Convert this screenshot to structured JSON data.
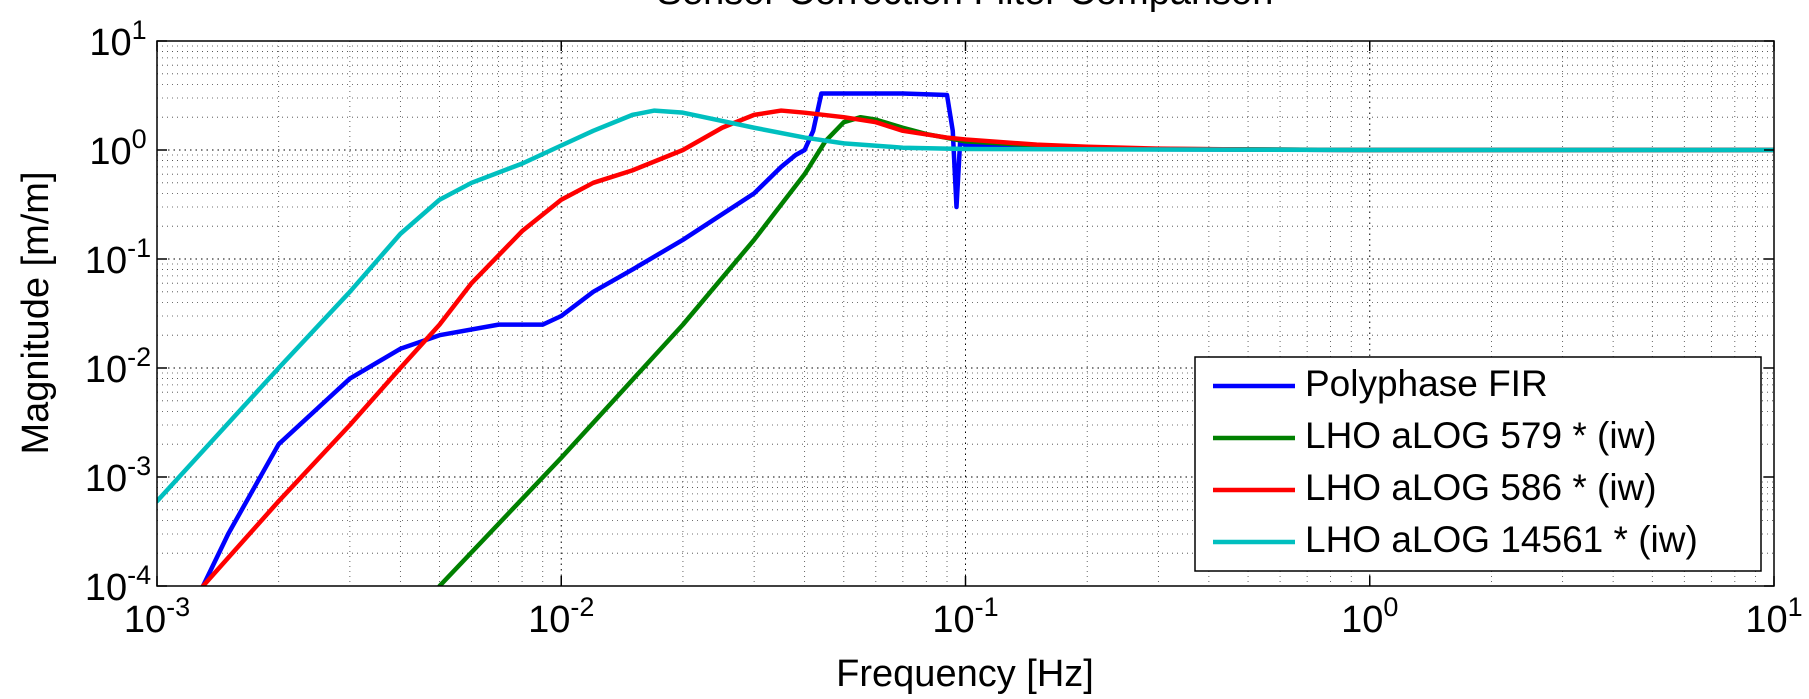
{
  "chart_data": {
    "type": "line",
    "title": "Sensor Correction Filter Comparison",
    "x_label": "Frequency [Hz]",
    "y_label": "Magnitude [m/m]",
    "xscale": "log",
    "yscale": "log",
    "xlim": [
      0.001,
      10
    ],
    "ylim": [
      0.0001,
      10
    ],
    "xticks": [
      {
        "value": 0.001,
        "label": "10^-3"
      },
      {
        "value": 0.01,
        "label": "10^-2"
      },
      {
        "value": 0.1,
        "label": "10^-1"
      },
      {
        "value": 1,
        "label": "10^0"
      },
      {
        "value": 10,
        "label": "10^1"
      }
    ],
    "yticks": [
      {
        "value": 0.0001,
        "label": "10^-4"
      },
      {
        "value": 0.001,
        "label": "10^-3"
      },
      {
        "value": 0.01,
        "label": "10^-2"
      },
      {
        "value": 0.1,
        "label": "10^-1"
      },
      {
        "value": 1,
        "label": "10^0"
      },
      {
        "value": 10,
        "label": "10^1"
      }
    ],
    "grid": true,
    "minor_grid": true,
    "legend": "lower right",
    "series": [
      {
        "name": "Polyphase FIR",
        "color": "#0000ff",
        "x": [
          0.0013,
          0.0015,
          0.002,
          0.003,
          0.004,
          0.005,
          0.007,
          0.009,
          0.01,
          0.012,
          0.015,
          0.02,
          0.03,
          0.035,
          0.038,
          0.04,
          0.042,
          0.044,
          0.05,
          0.07,
          0.09,
          0.093,
          0.095,
          0.097,
          0.1,
          0.15,
          0.2,
          1,
          10
        ],
        "values": [
          0.0001,
          0.0003,
          0.002,
          0.008,
          0.015,
          0.02,
          0.025,
          0.025,
          0.03,
          0.05,
          0.08,
          0.15,
          0.4,
          0.7,
          0.9,
          1.0,
          1.5,
          3.3,
          3.3,
          3.3,
          3.2,
          1.5,
          0.3,
          1.2,
          1.1,
          1.05,
          1.02,
          1,
          1
        ]
      },
      {
        "name": "LHO aLOG 579 * (iw)",
        "color": "#008000",
        "x": [
          0.005,
          0.01,
          0.02,
          0.03,
          0.04,
          0.045,
          0.05,
          0.055,
          0.06,
          0.07,
          0.08,
          0.1,
          0.15,
          0.2,
          0.3,
          1,
          10
        ],
        "values": [
          0.0001,
          0.0015,
          0.025,
          0.15,
          0.6,
          1.2,
          1.8,
          2.0,
          1.9,
          1.6,
          1.4,
          1.2,
          1.1,
          1.05,
          1.02,
          1,
          1
        ]
      },
      {
        "name": "LHO aLOG 586 * (iw)",
        "color": "#ff0000",
        "x": [
          0.0013,
          0.002,
          0.003,
          0.004,
          0.005,
          0.006,
          0.008,
          0.01,
          0.012,
          0.015,
          0.02,
          0.025,
          0.03,
          0.035,
          0.04,
          0.05,
          0.06,
          0.07,
          0.09,
          0.1,
          0.15,
          0.2,
          0.3,
          0.5,
          1,
          10
        ],
        "values": [
          0.0001,
          0.0006,
          0.003,
          0.01,
          0.025,
          0.06,
          0.18,
          0.35,
          0.5,
          0.65,
          1.0,
          1.6,
          2.1,
          2.3,
          2.2,
          2.0,
          1.8,
          1.5,
          1.3,
          1.25,
          1.12,
          1.07,
          1.03,
          1.01,
          1,
          1
        ]
      },
      {
        "name": "LHO aLOG 14561 * (iw)",
        "color": "#00bfbf",
        "x": [
          0.001,
          0.002,
          0.003,
          0.004,
          0.005,
          0.006,
          0.008,
          0.01,
          0.012,
          0.015,
          0.017,
          0.02,
          0.03,
          0.04,
          0.05,
          0.07,
          0.1,
          1,
          10
        ],
        "values": [
          0.0006,
          0.01,
          0.05,
          0.17,
          0.35,
          0.5,
          0.75,
          1.1,
          1.5,
          2.1,
          2.3,
          2.2,
          1.6,
          1.3,
          1.15,
          1.05,
          1.02,
          1,
          1
        ]
      }
    ]
  }
}
